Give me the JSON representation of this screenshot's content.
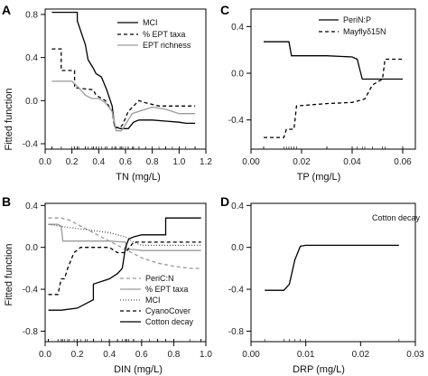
{
  "chart_data": [
    {
      "panel": "A",
      "type": "line",
      "xlabel": "TN (mg/L)",
      "ylabel": "Fitted function",
      "xlim": [
        0,
        1.2
      ],
      "ylim": [
        -0.45,
        0.85
      ],
      "xticks": [
        "0.0",
        "0.2",
        "0.4",
        "0.6",
        "0.8",
        "1.0",
        "1.2"
      ],
      "yticks": [
        "-0.4",
        "0.0",
        "0.4",
        "0.8"
      ],
      "legend_position": "top-right",
      "series": [
        {
          "name": "MCI",
          "style": "solid",
          "color": "#000000",
          "x": [
            0.05,
            0.24,
            0.24,
            0.3,
            0.32,
            0.36,
            0.38,
            0.42,
            0.46,
            0.5,
            0.52,
            0.56,
            0.62,
            0.66,
            0.7,
            0.75,
            0.8,
            0.9,
            1.0,
            1.05,
            1.12
          ],
          "y": [
            0.82,
            0.82,
            0.74,
            0.52,
            0.38,
            0.3,
            0.25,
            0.22,
            0.1,
            -0.05,
            -0.24,
            -0.26,
            -0.26,
            -0.2,
            -0.18,
            -0.18,
            -0.18,
            -0.19,
            -0.2,
            -0.21,
            -0.21
          ]
        },
        {
          "name": "% EPT taxa",
          "style": "dashed",
          "color": "#000000",
          "x": [
            0.05,
            0.12,
            0.12,
            0.22,
            0.22,
            0.36,
            0.38,
            0.45,
            0.5,
            0.52,
            0.56,
            0.58,
            0.62,
            0.66,
            0.7,
            0.75,
            0.85,
            0.9,
            0.95,
            1.0,
            1.12
          ],
          "y": [
            0.48,
            0.48,
            0.28,
            0.28,
            0.12,
            0.1,
            0.05,
            0.0,
            -0.1,
            -0.25,
            -0.25,
            -0.22,
            -0.1,
            -0.05,
            0.0,
            -0.02,
            -0.05,
            -0.05,
            -0.05,
            -0.05,
            -0.05
          ]
        },
        {
          "name": "EPT richness",
          "style": "solid",
          "color": "#9a9a9a",
          "x": [
            0.05,
            0.2,
            0.25,
            0.3,
            0.35,
            0.4,
            0.45,
            0.5,
            0.53,
            0.57,
            0.6,
            0.65,
            0.7,
            0.75,
            0.8,
            0.9,
            1.0,
            1.12
          ],
          "y": [
            0.18,
            0.18,
            0.12,
            0.05,
            0.02,
            0.02,
            -0.02,
            -0.1,
            -0.28,
            -0.28,
            -0.22,
            -0.12,
            -0.1,
            -0.08,
            -0.06,
            -0.08,
            -0.12,
            -0.12
          ]
        }
      ]
    },
    {
      "panel": "B",
      "type": "line",
      "xlabel": "DIN (mg/L)",
      "ylabel": "Fitted function",
      "xlim": [
        0,
        1.0
      ],
      "ylim": [
        -0.9,
        0.42
      ],
      "xticks": [
        "0.0",
        "0.2",
        "0.4",
        "0.6",
        "0.8",
        "1.0"
      ],
      "yticks": [
        "-0.8",
        "-0.4",
        "0.0",
        "0.4"
      ],
      "legend_position": "bottom-right",
      "series": [
        {
          "name": "PeriC:N",
          "style": "dashed",
          "color": "#9a9a9a",
          "x": [
            0.02,
            0.1,
            0.15,
            0.2,
            0.25,
            0.3,
            0.35,
            0.4,
            0.45,
            0.5,
            0.55,
            0.6,
            0.7,
            0.8,
            0.9,
            0.97
          ],
          "y": [
            0.28,
            0.28,
            0.26,
            0.22,
            0.18,
            0.14,
            0.1,
            0.06,
            0.02,
            -0.02,
            -0.06,
            -0.1,
            -0.15,
            -0.18,
            -0.2,
            -0.2
          ]
        },
        {
          "name": "% EPT taxa",
          "style": "solid",
          "color": "#9a9a9a",
          "x": [
            0.02,
            0.08,
            0.1,
            0.11,
            0.15,
            0.3,
            0.4,
            0.5,
            0.51,
            0.55,
            0.6,
            0.7,
            0.8,
            0.97
          ],
          "y": [
            0.22,
            0.22,
            0.2,
            0.06,
            0.06,
            0.06,
            0.06,
            0.05,
            -0.02,
            -0.02,
            -0.03,
            -0.03,
            -0.03,
            -0.03
          ]
        },
        {
          "name": "MCI",
          "style": "dotted",
          "color": "#555555",
          "x": [
            0.02,
            0.1,
            0.2,
            0.3,
            0.4,
            0.5,
            0.55,
            0.6,
            0.7,
            0.8,
            0.97
          ],
          "y": [
            0.22,
            0.2,
            0.18,
            0.16,
            0.14,
            0.1,
            0.05,
            0.02,
            0.02,
            0.02,
            0.02
          ]
        },
        {
          "name": "CyanoCover",
          "style": "dashed",
          "color": "#000000",
          "x": [
            0.02,
            0.08,
            0.1,
            0.12,
            0.14,
            0.18,
            0.22,
            0.26,
            0.3,
            0.4,
            0.45,
            0.5,
            0.55,
            0.6,
            0.7,
            0.8,
            0.97
          ],
          "y": [
            -0.45,
            -0.45,
            -0.3,
            -0.3,
            -0.2,
            -0.05,
            0.0,
            0.0,
            0.0,
            0.0,
            -0.05,
            -0.05,
            0.05,
            0.05,
            0.05,
            0.05,
            0.05
          ]
        },
        {
          "name": "Cotton decay",
          "style": "solid",
          "color": "#000000",
          "x": [
            0.02,
            0.1,
            0.2,
            0.3,
            0.3,
            0.4,
            0.45,
            0.48,
            0.5,
            0.52,
            0.55,
            0.6,
            0.65,
            0.75,
            0.75,
            0.97
          ],
          "y": [
            -0.6,
            -0.6,
            -0.58,
            -0.5,
            -0.35,
            -0.3,
            -0.25,
            -0.2,
            0.0,
            0.08,
            0.1,
            0.12,
            0.12,
            0.12,
            0.28,
            0.28
          ]
        }
      ]
    },
    {
      "panel": "C",
      "type": "line",
      "xlabel": "TP (mg/L)",
      "ylabel": "",
      "xlim": [
        0,
        0.065
      ],
      "ylim": [
        -0.65,
        0.55
      ],
      "xticks": [
        "0.00",
        "0.02",
        "0.04",
        "0.06"
      ],
      "yticks": [
        "-0.4",
        "0.0",
        "0.4"
      ],
      "legend_position": "top-right",
      "series": [
        {
          "name": "PeriN:P",
          "style": "solid",
          "color": "#000000",
          "x": [
            0.005,
            0.015,
            0.016,
            0.03,
            0.04,
            0.042,
            0.044,
            0.06
          ],
          "y": [
            0.27,
            0.27,
            0.15,
            0.15,
            0.14,
            0.12,
            -0.05,
            -0.05
          ]
        },
        {
          "name": "Mayflyδ15N",
          "style": "dashed",
          "color": "#000000",
          "x": [
            0.005,
            0.013,
            0.014,
            0.017,
            0.018,
            0.03,
            0.04,
            0.045,
            0.048,
            0.052,
            0.053,
            0.06
          ],
          "y": [
            -0.55,
            -0.55,
            -0.48,
            -0.48,
            -0.28,
            -0.26,
            -0.25,
            -0.22,
            -0.1,
            -0.05,
            0.12,
            0.12
          ]
        }
      ]
    },
    {
      "panel": "D",
      "type": "line",
      "xlabel": "DRP (mg/L)",
      "ylabel": "",
      "xlim": [
        0,
        0.03
      ],
      "ylim": [
        -0.9,
        0.42
      ],
      "xticks": [
        "0.00",
        "0.01",
        "0.02",
        "0.03"
      ],
      "yticks": [
        "-0.8",
        "-0.4",
        "0.0",
        "0.4"
      ],
      "annotation": "Cotton decay",
      "series": [
        {
          "name": "Cotton decay",
          "style": "solid",
          "color": "#000000",
          "x": [
            0.0025,
            0.006,
            0.007,
            0.008,
            0.009,
            0.01,
            0.027
          ],
          "y": [
            -0.41,
            -0.41,
            -0.35,
            -0.12,
            0.01,
            0.02,
            0.02
          ]
        }
      ]
    }
  ]
}
